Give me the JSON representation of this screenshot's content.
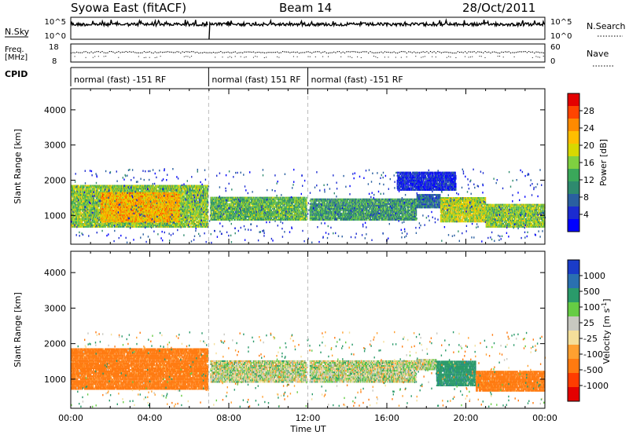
{
  "header": {
    "title_left": "Syowa East (fitACF)",
    "title_center": "Beam 14",
    "title_right": "28/Oct/2011"
  },
  "noise_panel": {
    "left_label": "N.Sky",
    "right_label": "N.Search",
    "left_ticks": [
      "10^5",
      "10^0"
    ],
    "right_ticks": [
      "10^5",
      "10^0"
    ]
  },
  "freq_panel": {
    "left_label_1": "Freq.",
    "left_label_2": "[MHz]",
    "right_label": "Nave",
    "left_ticks": [
      "18",
      "8"
    ],
    "right_ticks": [
      "60",
      "0"
    ]
  },
  "cpid": {
    "label": "CPID",
    "segments": [
      {
        "start_hr": 0.0,
        "end_hr": 6.98,
        "text": "normal (fast) -151 RF"
      },
      {
        "start_hr": 6.98,
        "end_hr": 12.0,
        "text": "normal (fast) 151 RF"
      },
      {
        "start_hr": 12.0,
        "end_hr": 24.0,
        "text": "normal (fast) -151 RF"
      }
    ]
  },
  "x_axis": {
    "label": "Time UT",
    "tick_labels": [
      "00:00",
      "04:00",
      "08:00",
      "12:00",
      "16:00",
      "20:00",
      "00:00"
    ],
    "tick_values_hr": [
      0,
      4,
      8,
      12,
      16,
      20,
      24
    ]
  },
  "power_colorbar": {
    "label": "Power [dB]",
    "tick_labels": [
      "28",
      "24",
      "20",
      "16",
      "12",
      "8",
      "4"
    ],
    "colors": [
      "#e40000",
      "#ff4400",
      "#ff8a00",
      "#ffbe00",
      "#d8d800",
      "#7fd040",
      "#3aa85a",
      "#2e8a6e",
      "#2a5fa0",
      "#1b2bd0",
      "#0000ff"
    ]
  },
  "velocity_colorbar": {
    "label": "Velocity  [m s",
    "label_sup": "-1",
    "label_end": "]",
    "tick_labels": [
      "1000",
      "500",
      "100",
      "25",
      "-25",
      "-100",
      "-500",
      "-1000"
    ],
    "colors": [
      "#1a3cc8",
      "#2a70b0",
      "#2a9a6a",
      "#66cc44",
      "#c8c8c0",
      "#f4df9a",
      "#ffa030",
      "#ff7a10",
      "#ff3c00",
      "#e40000"
    ]
  },
  "chart_data": [
    {
      "type": "heatmap",
      "title": "Power",
      "xlabel": "Time UT",
      "ylabel": "Slant Range [km]",
      "xlim_hr": [
        0,
        24
      ],
      "ylim_km": [
        180,
        4600
      ],
      "y_tick_labels": [
        "1000",
        "2000",
        "3000",
        "4000"
      ],
      "y_tick_values": [
        1000,
        2000,
        3000,
        4000
      ],
      "regions": [
        {
          "t0": 0.0,
          "t1": 7.0,
          "r0": 650,
          "r1": 1850,
          "power_db": 18
        },
        {
          "t0": 1.5,
          "t1": 5.5,
          "r0": 800,
          "r1": 1650,
          "power_db": 24
        },
        {
          "t0": 7.0,
          "t1": 12.0,
          "r0": 850,
          "r1": 1500,
          "power_db": 16
        },
        {
          "t0": 12.0,
          "t1": 17.5,
          "r0": 850,
          "r1": 1450,
          "power_db": 14
        },
        {
          "t0": 17.5,
          "t1": 18.7,
          "r0": 1200,
          "r1": 1600,
          "power_db": 10
        },
        {
          "t0": 18.7,
          "t1": 21.0,
          "r0": 800,
          "r1": 1500,
          "power_db": 20
        },
        {
          "t0": 21.0,
          "t1": 24.0,
          "r0": 650,
          "r1": 1300,
          "power_db": 18
        },
        {
          "t0": 16.5,
          "t1": 19.5,
          "r0": 1700,
          "r1": 2200,
          "power_db": 6
        }
      ],
      "gaps_hr": [
        6.98,
        12.0
      ]
    },
    {
      "type": "heatmap",
      "title": "Velocity",
      "xlabel": "Time UT",
      "ylabel": "Slant Range [km]",
      "xlim_hr": [
        0,
        24
      ],
      "ylim_km": [
        180,
        4600
      ],
      "y_tick_labels": [
        "1000",
        "2000",
        "3000",
        "4000"
      ],
      "y_tick_values": [
        1000,
        2000,
        3000,
        4000
      ],
      "regions": [
        {
          "t0": 0.0,
          "t1": 7.0,
          "r0": 700,
          "r1": 1850,
          "velocity_ms": -300
        },
        {
          "t0": 7.0,
          "t1": 17.5,
          "r0": 900,
          "r1": 1500,
          "velocity_ms": 0
        },
        {
          "t0": 17.5,
          "t1": 18.5,
          "r0": 1250,
          "r1": 1550,
          "velocity_ms": 0
        },
        {
          "t0": 18.5,
          "t1": 20.5,
          "r0": 800,
          "r1": 1500,
          "velocity_ms": 200
        },
        {
          "t0": 20.5,
          "t1": 24.0,
          "r0": 650,
          "r1": 1200,
          "velocity_ms": -300
        }
      ],
      "gaps_hr": [
        6.98,
        12.0
      ]
    }
  ]
}
